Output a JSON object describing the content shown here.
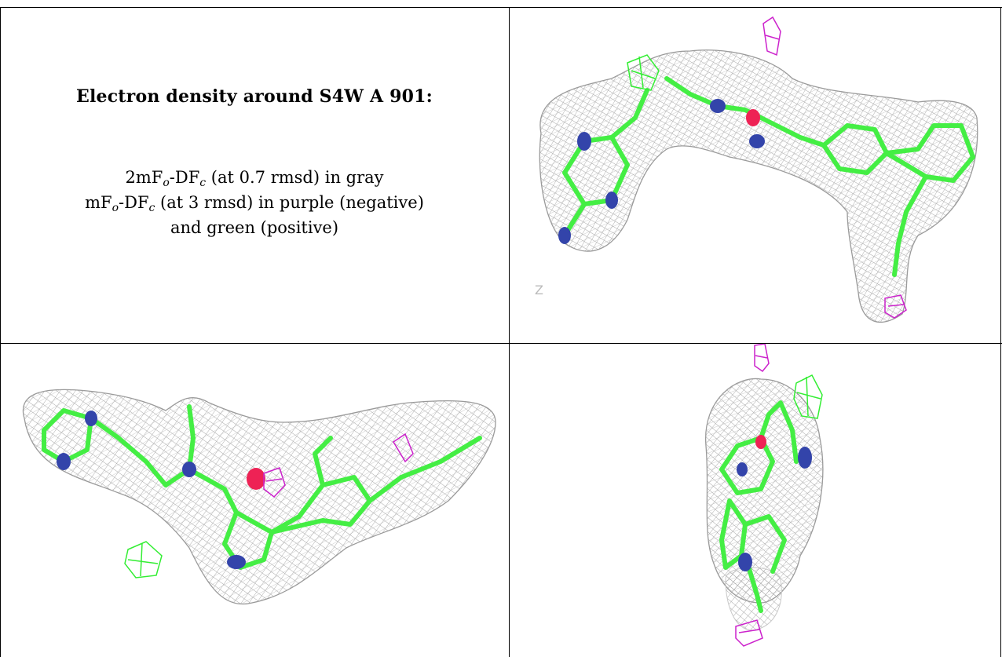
{
  "caption": {
    "title": "Electron density around S4W A 901:",
    "line1": {
      "prefix": "2mF",
      "sub1": "o",
      "mid": "-DF",
      "sub2": "c",
      "suffix": " (at 0.7 rmsd) in gray"
    },
    "line2": {
      "prefix": "mF",
      "sub1": "o",
      "mid": "-DF",
      "sub2": "c",
      "suffix": " (at 3 rmsd) in purple (negative)"
    },
    "line3": "and green (positive)"
  },
  "panels": [
    {
      "id": "view-1",
      "axis_label": "Z"
    },
    {
      "id": "view-2",
      "axis_label": ""
    },
    {
      "id": "view-3",
      "axis_label": ""
    }
  ],
  "colors": {
    "mesh_2fofc": "#a8a8a8",
    "mesh_positive": "#33ee33",
    "mesh_negative": "#cc22cc",
    "carbon": "#44ee44",
    "nitrogen": "#3344aa",
    "oxygen": "#ee2255",
    "border": "#000000"
  }
}
